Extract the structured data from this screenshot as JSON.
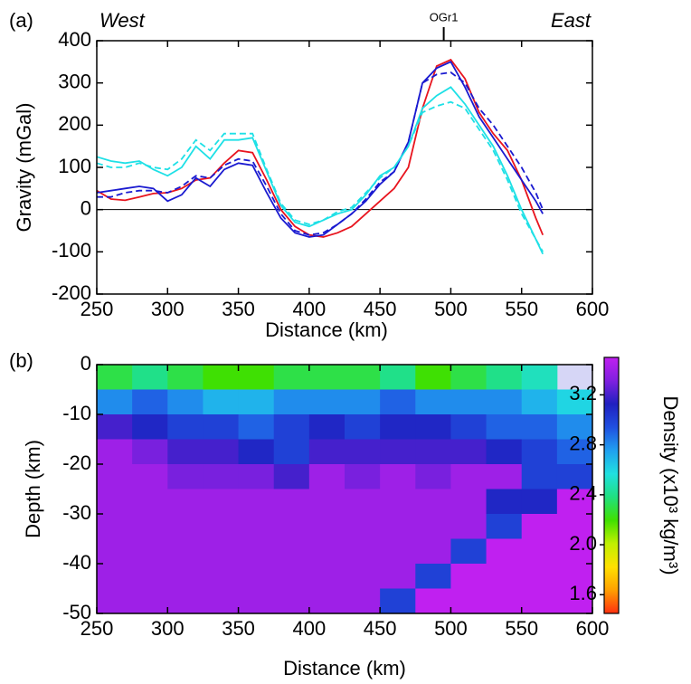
{
  "chart_data": [
    {
      "type": "line",
      "panel_label": "(a)",
      "left_note": "West",
      "right_note": "East",
      "annotation": {
        "text": "OGr1",
        "x": 495
      },
      "xlabel": "Distance (km)",
      "ylabel": "Gravity (mGal)",
      "xlim": [
        250,
        600
      ],
      "xticks": [
        250,
        300,
        350,
        400,
        450,
        500,
        550,
        600
      ],
      "ylim": [
        -200,
        400
      ],
      "yticks": [
        -200,
        -100,
        0,
        100,
        200,
        300,
        400
      ],
      "zero_line": true,
      "x": [
        250,
        260,
        270,
        280,
        290,
        300,
        310,
        320,
        330,
        340,
        350,
        360,
        370,
        380,
        390,
        400,
        410,
        420,
        430,
        440,
        450,
        460,
        470,
        480,
        490,
        500,
        510,
        520,
        530,
        540,
        550,
        560,
        565
      ],
      "series": [
        {
          "color": "#e8141e",
          "dash": false,
          "values": [
            45,
            25,
            22,
            30,
            38,
            40,
            50,
            70,
            75,
            110,
            140,
            135,
            70,
            0,
            -40,
            -60,
            -65,
            -55,
            -40,
            -10,
            20,
            50,
            100,
            240,
            340,
            355,
            310,
            230,
            180,
            140,
            70,
            -20,
            -60
          ]
        },
        {
          "color": "#1a1ad0",
          "dash": false,
          "values": [
            40,
            45,
            50,
            55,
            50,
            20,
            35,
            75,
            55,
            95,
            110,
            105,
            40,
            -20,
            -55,
            -65,
            -60,
            -35,
            -10,
            20,
            60,
            90,
            160,
            300,
            335,
            350,
            290,
            220,
            170,
            120,
            70,
            20,
            -10
          ]
        },
        {
          "color": "#1a1ad0",
          "dash": true,
          "values": [
            30,
            30,
            40,
            45,
            45,
            40,
            55,
            80,
            75,
            105,
            120,
            115,
            55,
            -10,
            -50,
            -60,
            -55,
            -35,
            -10,
            25,
            65,
            90,
            160,
            300,
            320,
            325,
            300,
            240,
            200,
            150,
            100,
            40,
            0
          ]
        },
        {
          "color": "#1ee0e6",
          "dash": false,
          "values": [
            125,
            115,
            110,
            115,
            95,
            80,
            100,
            150,
            120,
            165,
            165,
            170,
            90,
            10,
            -30,
            -40,
            -25,
            -10,
            0,
            35,
            80,
            100,
            150,
            240,
            270,
            290,
            250,
            200,
            150,
            80,
            0,
            -70,
            -105
          ]
        },
        {
          "color": "#1ee0e6",
          "dash": true,
          "values": [
            110,
            100,
            100,
            110,
            100,
            95,
            120,
            165,
            140,
            180,
            180,
            180,
            95,
            15,
            -25,
            -35,
            -25,
            -5,
            5,
            40,
            75,
            100,
            150,
            230,
            245,
            255,
            240,
            190,
            140,
            70,
            -10,
            -70,
            -100
          ]
        }
      ]
    },
    {
      "type": "heatmap",
      "panel_label": "(b)",
      "xlabel": "Distance (km)",
      "ylabel": "Depth (km)",
      "colorbar_label": "Density (x10³ kg/m³)",
      "background": "#d6d6f6",
      "xlim": [
        250,
        600
      ],
      "xticks": [
        250,
        300,
        350,
        400,
        450,
        500,
        550,
        600
      ],
      "ylim": [
        -50,
        0
      ],
      "yticks": [
        -50,
        -40,
        -30,
        -20,
        -10,
        0
      ],
      "zlim": [
        1.45,
        3.5
      ],
      "zticks": [
        1.6,
        {
          "value": 2,
          "label": "2.0"
        },
        2.4,
        2.8,
        3.2
      ],
      "colormap": [
        "#ff3010",
        "#ffa000",
        "#ffe000",
        "#c0f000",
        "#40e000",
        "#20e080",
        "#20e0e0",
        "#20a0f0",
        "#2050e0",
        "#2020c0",
        "#8020e0",
        "#c020f0"
      ],
      "x": [
        262.5,
        287.5,
        312.5,
        337.5,
        362.5,
        387.5,
        412.5,
        437.5,
        462.5,
        487.5,
        512.5,
        537.5,
        562.5,
        587.5
      ],
      "y": [
        -2.5,
        -7.5,
        -12.5,
        -17.5,
        -22.5,
        -27.5,
        -32.5,
        -37.5,
        -42.5,
        -47.5
      ],
      "z": [
        [
          2.3,
          2.4,
          2.3,
          2.2,
          2.2,
          2.3,
          2.3,
          2.3,
          2.4,
          2.2,
          2.3,
          2.4,
          2.5,
          null
        ],
        [
          2.8,
          2.9,
          2.8,
          2.7,
          2.7,
          2.8,
          2.8,
          2.8,
          2.9,
          2.8,
          2.8,
          2.8,
          2.7,
          2.6
        ],
        [
          3.2,
          3.1,
          3.0,
          3.0,
          2.9,
          3.0,
          3.1,
          3.0,
          3.1,
          3.1,
          3.0,
          2.9,
          2.9,
          2.8
        ],
        [
          3.4,
          3.3,
          3.2,
          3.2,
          3.1,
          3.0,
          3.2,
          3.2,
          3.2,
          3.2,
          3.2,
          3.1,
          3.0,
          2.9
        ],
        [
          3.4,
          3.4,
          3.3,
          3.3,
          3.3,
          3.2,
          3.4,
          3.3,
          3.4,
          3.3,
          3.4,
          3.4,
          3.0,
          3.0
        ],
        [
          3.4,
          3.4,
          3.4,
          3.4,
          3.4,
          3.4,
          3.4,
          3.4,
          3.4,
          3.4,
          3.4,
          3.1,
          3.1,
          3.5
        ],
        [
          3.4,
          3.4,
          3.4,
          3.4,
          3.4,
          3.4,
          3.4,
          3.4,
          3.4,
          3.4,
          3.4,
          3.0,
          3.5,
          3.5
        ],
        [
          3.4,
          3.4,
          3.4,
          3.4,
          3.4,
          3.4,
          3.4,
          3.4,
          3.4,
          3.4,
          3.0,
          3.5,
          3.5,
          3.5
        ],
        [
          3.4,
          3.4,
          3.4,
          3.4,
          3.4,
          3.4,
          3.4,
          3.4,
          3.4,
          3.0,
          3.5,
          3.5,
          3.5,
          3.5
        ],
        [
          3.4,
          3.4,
          3.4,
          3.4,
          3.4,
          3.4,
          3.4,
          3.4,
          3.0,
          3.5,
          3.5,
          3.5,
          3.5,
          3.5
        ]
      ]
    }
  ]
}
